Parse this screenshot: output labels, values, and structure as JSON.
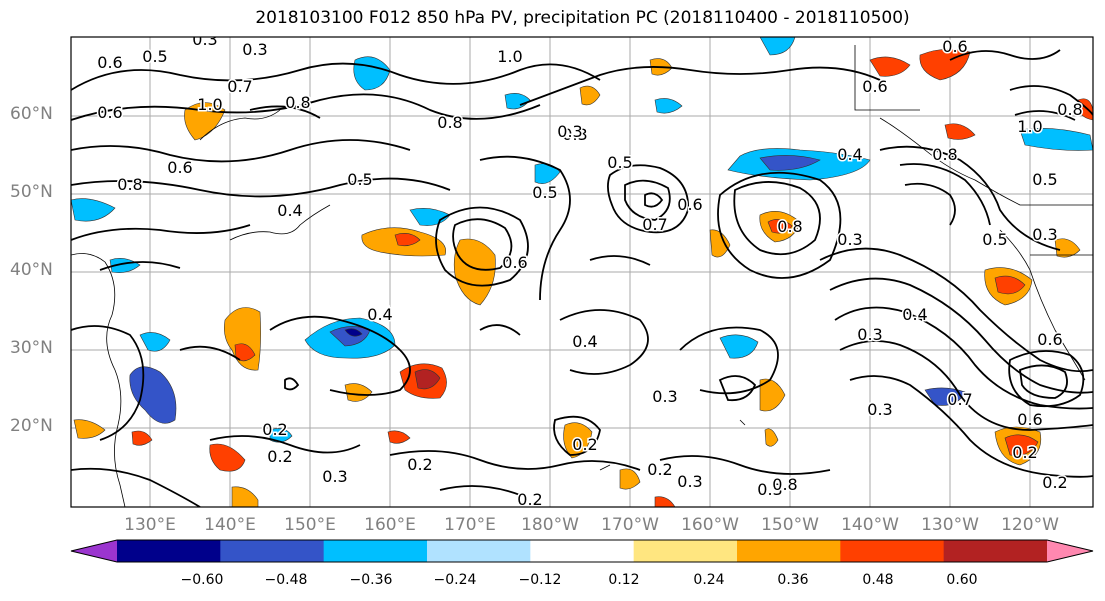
{
  "title": "2018103100 F012 850 hPa PV, precipitation PC (2018110400 - 2018110500)",
  "lat_labels": [
    "60°N",
    "50°N",
    "40°N",
    "30°N",
    "20°N"
  ],
  "lon_labels": [
    "130°E",
    "140°E",
    "150°E",
    "160°E",
    "170°E",
    "180°W",
    "170°W",
    "160°W",
    "150°W",
    "140°W",
    "130°W",
    "120°W"
  ],
  "colorbar": {
    "ticks": [
      "−0.60",
      "−0.48",
      "−0.36",
      "−0.24",
      "−0.12",
      "0.12",
      "0.24",
      "0.36",
      "0.48",
      "0.60"
    ],
    "colors": [
      "#9b35cf",
      "#00008b",
      "#3454c8",
      "#00bfff",
      "#b0e2ff",
      "#ffffff",
      "#ffe680",
      "#ffa500",
      "#ff4000",
      "#b22222",
      "#ff88b0"
    ]
  },
  "contour_labels": [
    "0.3",
    "0.5",
    "0.3",
    "0.6",
    "0.7",
    "0.8",
    "1.0",
    "0.6",
    "0.8",
    "0.8",
    "0.5",
    "0.6",
    "1.0",
    "0.6",
    "0.6",
    "0.4",
    "0.5",
    "0.3",
    "0.5",
    "0.7",
    "0.6",
    "0.6",
    "0.8",
    "0.4",
    "0.3",
    "0.5",
    "0.4",
    "0.3",
    "0.3",
    "0.2",
    "0.2",
    "0.3",
    "0.2",
    "0.2",
    "0.3",
    "0.2",
    "0.3",
    "0.2",
    "0.3",
    "0.8",
    "0.4",
    "0.6",
    "0.7",
    "0.6",
    "0.2",
    "0.2",
    "0.3",
    "0.5",
    "0.8",
    "1.0",
    "0.8",
    "0.3",
    "0.4"
  ]
}
